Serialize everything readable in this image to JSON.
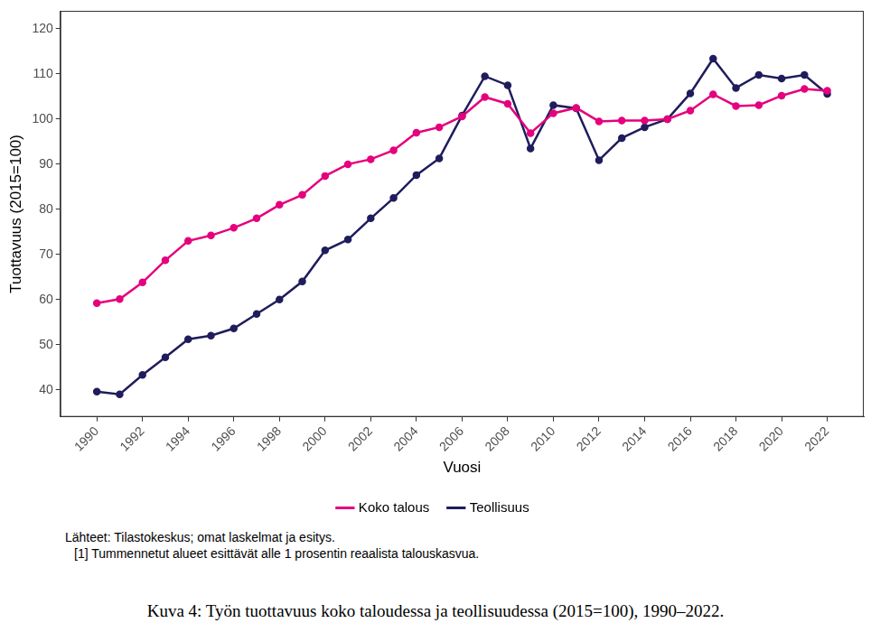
{
  "chart_data": {
    "type": "line",
    "y_label": "Tuottavuus (2015=100)",
    "x_label": "Vuosi",
    "x": [
      1990,
      1991,
      1992,
      1993,
      1994,
      1995,
      1996,
      1997,
      1998,
      1999,
      2000,
      2001,
      2002,
      2003,
      2004,
      2005,
      2006,
      2007,
      2008,
      2009,
      2010,
      2011,
      2012,
      2013,
      2014,
      2015,
      2016,
      2017,
      2018,
      2019,
      2020,
      2021,
      2022
    ],
    "series": [
      {
        "name": "Koko talous",
        "color": "#e5007d",
        "marker": "circle",
        "line_style": "solid",
        "values": [
          59.2,
          60.1,
          63.8,
          68.7,
          73.0,
          74.2,
          75.9,
          78.0,
          81.0,
          83.2,
          87.4,
          90.0,
          91.1,
          93.1,
          97.0,
          98.2,
          100.6,
          104.9,
          103.4,
          96.9,
          101.3,
          102.5,
          99.5,
          99.7,
          99.7,
          100,
          101.9,
          105.5,
          102.9,
          103.1,
          105.2,
          106.7,
          106.3
        ]
      },
      {
        "name": "Teollisuus",
        "color": "#1f1d5c",
        "marker": "circle",
        "line_style": "solid",
        "values": [
          39.6,
          39.0,
          43.3,
          47.2,
          51.2,
          52.0,
          53.6,
          56.8,
          60.0,
          64.0,
          70.9,
          73.3,
          78.0,
          82.5,
          87.6,
          91.3,
          100.8,
          109.5,
          107.5,
          93.5,
          103.1,
          102.4,
          90.9,
          95.8,
          98.2,
          100,
          105.7,
          113.4,
          106.9,
          109.8,
          109.0,
          109.8,
          105.6
        ]
      }
    ],
    "xlim": [
      1988.4,
      2023.6
    ],
    "xticks": [
      1990,
      1992,
      1994,
      1996,
      1998,
      2000,
      2002,
      2004,
      2006,
      2008,
      2010,
      2012,
      2014,
      2016,
      2018,
      2020,
      2022
    ],
    "ylim": [
      34,
      124
    ],
    "yticks": [
      40,
      50,
      60,
      70,
      80,
      90,
      100,
      110,
      120
    ],
    "grid": false,
    "legend": "bottom",
    "notes": [
      "Lähteet: Tilastokeskus; omat laskelmat ja esitys.",
      "[1] Tummennetut alueet esittävät alle 1 prosentin reaalista talouskasvua."
    ],
    "caption": "Kuva 4: Työn tuottavuus koko taloudessa ja teollisuudessa (2015=100), 1990–2022."
  }
}
